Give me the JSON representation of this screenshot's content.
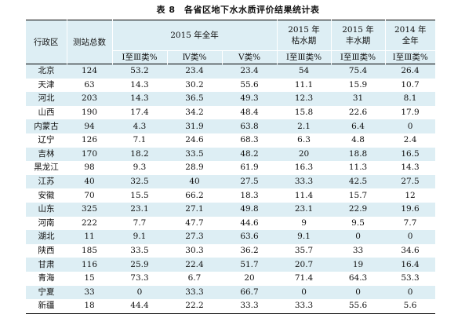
{
  "caption": "表 8　各省区地下水水质评价结果统计表",
  "headers": {
    "region": "行政区",
    "stations": "测站总数",
    "year2015_full": "2015 年全年",
    "year2015_dry_line1": "2015 年",
    "year2015_dry_line2": "枯水期",
    "year2015_wet_line1": "2015 年",
    "year2015_wet_line2": "丰水期",
    "year2014_full_line1": "2014 年",
    "year2014_full_line2": "全年",
    "grade_1_3": "Ⅰ至Ⅲ类%",
    "grade_4": "Ⅳ类%",
    "grade_5": "Ⅴ类%",
    "dry_grade_1_3": "Ⅰ至Ⅲ类%",
    "wet_grade_1_3": "Ⅰ至Ⅲ类%",
    "y2014_grade_1_3": "Ⅰ至Ⅲ类%"
  },
  "rows": [
    [
      "北京",
      "124",
      "53.2",
      "23.4",
      "23.4",
      "54",
      "75.4",
      "26.4"
    ],
    [
      "天津",
      "63",
      "14.3",
      "30.2",
      "55.6",
      "11.1",
      "15.9",
      "10.7"
    ],
    [
      "河北",
      "203",
      "14.3",
      "36.5",
      "49.3",
      "12.3",
      "31",
      "8.1"
    ],
    [
      "山西",
      "190",
      "17.4",
      "34.2",
      "48.4",
      "15.8",
      "22.6",
      "17.9"
    ],
    [
      "内蒙古",
      "94",
      "4.3",
      "31.9",
      "63.8",
      "2.1",
      "6.4",
      "0"
    ],
    [
      "辽宁",
      "126",
      "7.1",
      "24.6",
      "68.3",
      "6.3",
      "4.8",
      "2.4"
    ],
    [
      "吉林",
      "170",
      "18.2",
      "33.5",
      "48.2",
      "20",
      "18.8",
      "16.5"
    ],
    [
      "黑龙江",
      "98",
      "9.3",
      "28.9",
      "61.9",
      "16.3",
      "11.3",
      "14.3"
    ],
    [
      "江苏",
      "40",
      "32.5",
      "40",
      "27.5",
      "33.3",
      "42.5",
      "27.5"
    ],
    [
      "安徽",
      "70",
      "15.5",
      "66.2",
      "18.3",
      "11.4",
      "15.7",
      "12"
    ],
    [
      "山东",
      "325",
      "23.1",
      "27.1",
      "49.8",
      "23.1",
      "22.9",
      "19.6"
    ],
    [
      "河南",
      "222",
      "7.7",
      "47.7",
      "44.6",
      "9",
      "9.5",
      "7.7"
    ],
    [
      "湖北",
      "11",
      "9.1",
      "27.3",
      "63.6",
      "9.1",
      "0",
      "0"
    ],
    [
      "陕西",
      "185",
      "33.5",
      "30.3",
      "36.2",
      "35.7",
      "33",
      "34.6"
    ],
    [
      "甘肃",
      "116",
      "25.9",
      "22.4",
      "51.7",
      "20.7",
      "19",
      "16.4"
    ],
    [
      "青海",
      "15",
      "73.3",
      "6.7",
      "20",
      "71.4",
      "64.3",
      "53.3"
    ],
    [
      "宁夏",
      "33",
      "0",
      "33.3",
      "66.7",
      "0",
      "0",
      "0"
    ],
    [
      "新疆",
      "18",
      "44.4",
      "22.2",
      "33.3",
      "33.3",
      "55.6",
      "5.6"
    ]
  ]
}
